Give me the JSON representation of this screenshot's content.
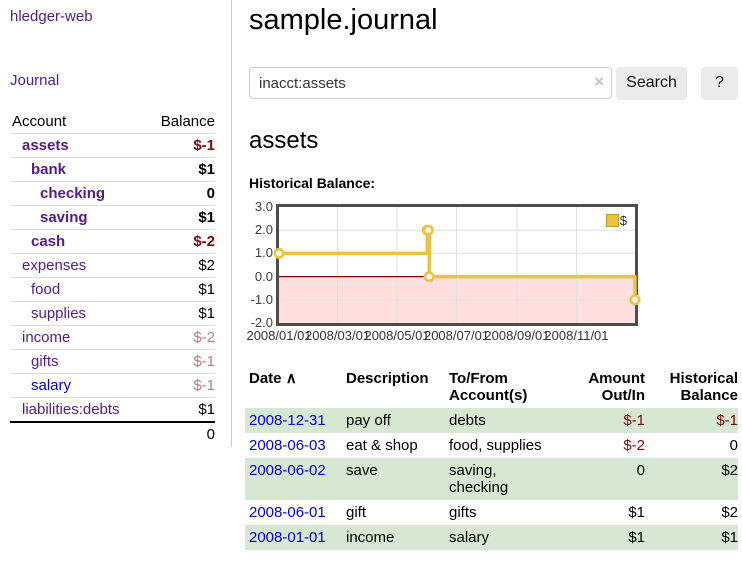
{
  "app": {
    "title": "hledger-web"
  },
  "sidebar": {
    "nav_journal": "Journal",
    "table": {
      "headers": {
        "account": "Account",
        "balance": "Balance"
      },
      "rows": [
        {
          "name": "assets",
          "balance": "$-1",
          "depth": 1,
          "bold": true,
          "balance_class": "neg-strong",
          "link": "purple"
        },
        {
          "name": "bank",
          "balance": "$1",
          "depth": 2,
          "bold": true,
          "balance_class": "num-strong",
          "link": "purple"
        },
        {
          "name": "checking",
          "balance": "0",
          "depth": 3,
          "bold": true,
          "balance_class": "num-strong",
          "link": "purple"
        },
        {
          "name": "saving",
          "balance": "$1",
          "depth": 3,
          "bold": true,
          "balance_class": "num-strong",
          "link": "purple"
        },
        {
          "name": "cash",
          "balance": "$-2",
          "depth": 2,
          "bold": true,
          "balance_class": "neg-strong",
          "link": "purple"
        },
        {
          "name": "expenses",
          "balance": "$2",
          "depth": 1,
          "bold": false,
          "balance_class": "num",
          "link": "purple"
        },
        {
          "name": "food",
          "balance": "$1",
          "depth": 2,
          "bold": false,
          "balance_class": "num",
          "link": "purple"
        },
        {
          "name": "supplies",
          "balance": "$1",
          "depth": 2,
          "bold": false,
          "balance_class": "num",
          "link": "purple"
        },
        {
          "name": "income",
          "balance": "$-2",
          "depth": 1,
          "bold": false,
          "balance_class": "neg-weak",
          "link": "purple"
        },
        {
          "name": "gifts",
          "balance": "$-1",
          "depth": 2,
          "bold": false,
          "balance_class": "neg-weak",
          "link": "purple"
        },
        {
          "name": "salary",
          "balance": "$-1",
          "depth": 2,
          "bold": false,
          "balance_class": "neg-weak",
          "link": "blue"
        },
        {
          "name": "liabilities:debts",
          "balance": "$1",
          "depth": 1,
          "bold": false,
          "balance_class": "num",
          "link": "purple"
        }
      ],
      "total": "0"
    }
  },
  "main": {
    "title": "sample.journal",
    "search": {
      "value": "inacct:assets",
      "clear_icon": "×",
      "button": "Search",
      "help_button": "?"
    },
    "account_heading": "assets",
    "chart_label": "Historical Balance:"
  },
  "chart_data": {
    "type": "line",
    "title": "Historical Balance",
    "step": true,
    "xlim": [
      "2008-01-01",
      "2008-12-31"
    ],
    "ylim": [
      -2,
      3
    ],
    "y_ticks": [
      {
        "label": "3.0",
        "value": 3
      },
      {
        "label": "2.0",
        "value": 2
      },
      {
        "label": "1.0",
        "value": 1
      },
      {
        "label": "0.0",
        "value": 0
      },
      {
        "label": "-1.0",
        "value": -1
      },
      {
        "label": "-2.0",
        "value": -2
      }
    ],
    "x_ticks": [
      {
        "label": "2008/01/01",
        "date": "2008-01-01"
      },
      {
        "label": "2008/03/01",
        "date": "2008-03-01"
      },
      {
        "label": "2008/05/01",
        "date": "2008-05-01"
      },
      {
        "label": "2008/07/01",
        "date": "2008-07-01"
      },
      {
        "label": "2008/09/01",
        "date": "2008-09-01"
      },
      {
        "label": "2008/11/01",
        "date": "2008-11-01"
      }
    ],
    "series": [
      {
        "name": "$",
        "color": "#EDC240",
        "points": [
          [
            "2008-01-01",
            1
          ],
          [
            "2008-06-01",
            2
          ],
          [
            "2008-06-02",
            2
          ],
          [
            "2008-06-03",
            0
          ],
          [
            "2008-12-31",
            -1
          ]
        ]
      }
    ],
    "legend_position": "top-right",
    "grid": true,
    "negative_region": {
      "fill": "#ffdede",
      "zero_line_color": "#8b0000"
    }
  },
  "transactions": {
    "headers": {
      "date": "Date",
      "sort_icon": "∧",
      "description": "Description",
      "accounts": "To/From Account(s)",
      "amount": "Amount Out/In",
      "balance": "Historical Balance"
    },
    "rows": [
      {
        "date": "2008-12-31",
        "description": "pay off",
        "accounts": "debts",
        "amount": "$-1",
        "balance": "$-1",
        "neg_amount": true,
        "neg_balance": true,
        "shaded": true
      },
      {
        "date": "2008-06-03",
        "description": "eat & shop",
        "accounts": "food, supplies",
        "amount": "$-2",
        "balance": "0",
        "neg_amount": true,
        "neg_balance": false,
        "shaded": false
      },
      {
        "date": "2008-06-02",
        "description": "save",
        "accounts": "saving, checking",
        "amount": "0",
        "balance": "$2",
        "neg_amount": false,
        "neg_balance": false,
        "shaded": true
      },
      {
        "date": "2008-06-01",
        "description": "gift",
        "accounts": "gifts",
        "amount": "$1",
        "balance": "$2",
        "neg_amount": false,
        "neg_balance": false,
        "shaded": false
      },
      {
        "date": "2008-01-01",
        "description": "income",
        "accounts": "salary",
        "amount": "$1",
        "balance": "$1",
        "neg_amount": false,
        "neg_balance": false,
        "shaded": true
      }
    ]
  },
  "colors": {
    "link_purple": "#551a8b",
    "link_blue": "#0000dd",
    "negative_strong": "#7b0b0b",
    "negative_weak": "#bd7e7e",
    "row_stripe_green": "#d7e8d2",
    "chart_line": "#EDC240",
    "chart_negative_fill": "#ffdede",
    "chart_zero_line": "#8b0000",
    "chart_border": "#4d4d4d"
  }
}
